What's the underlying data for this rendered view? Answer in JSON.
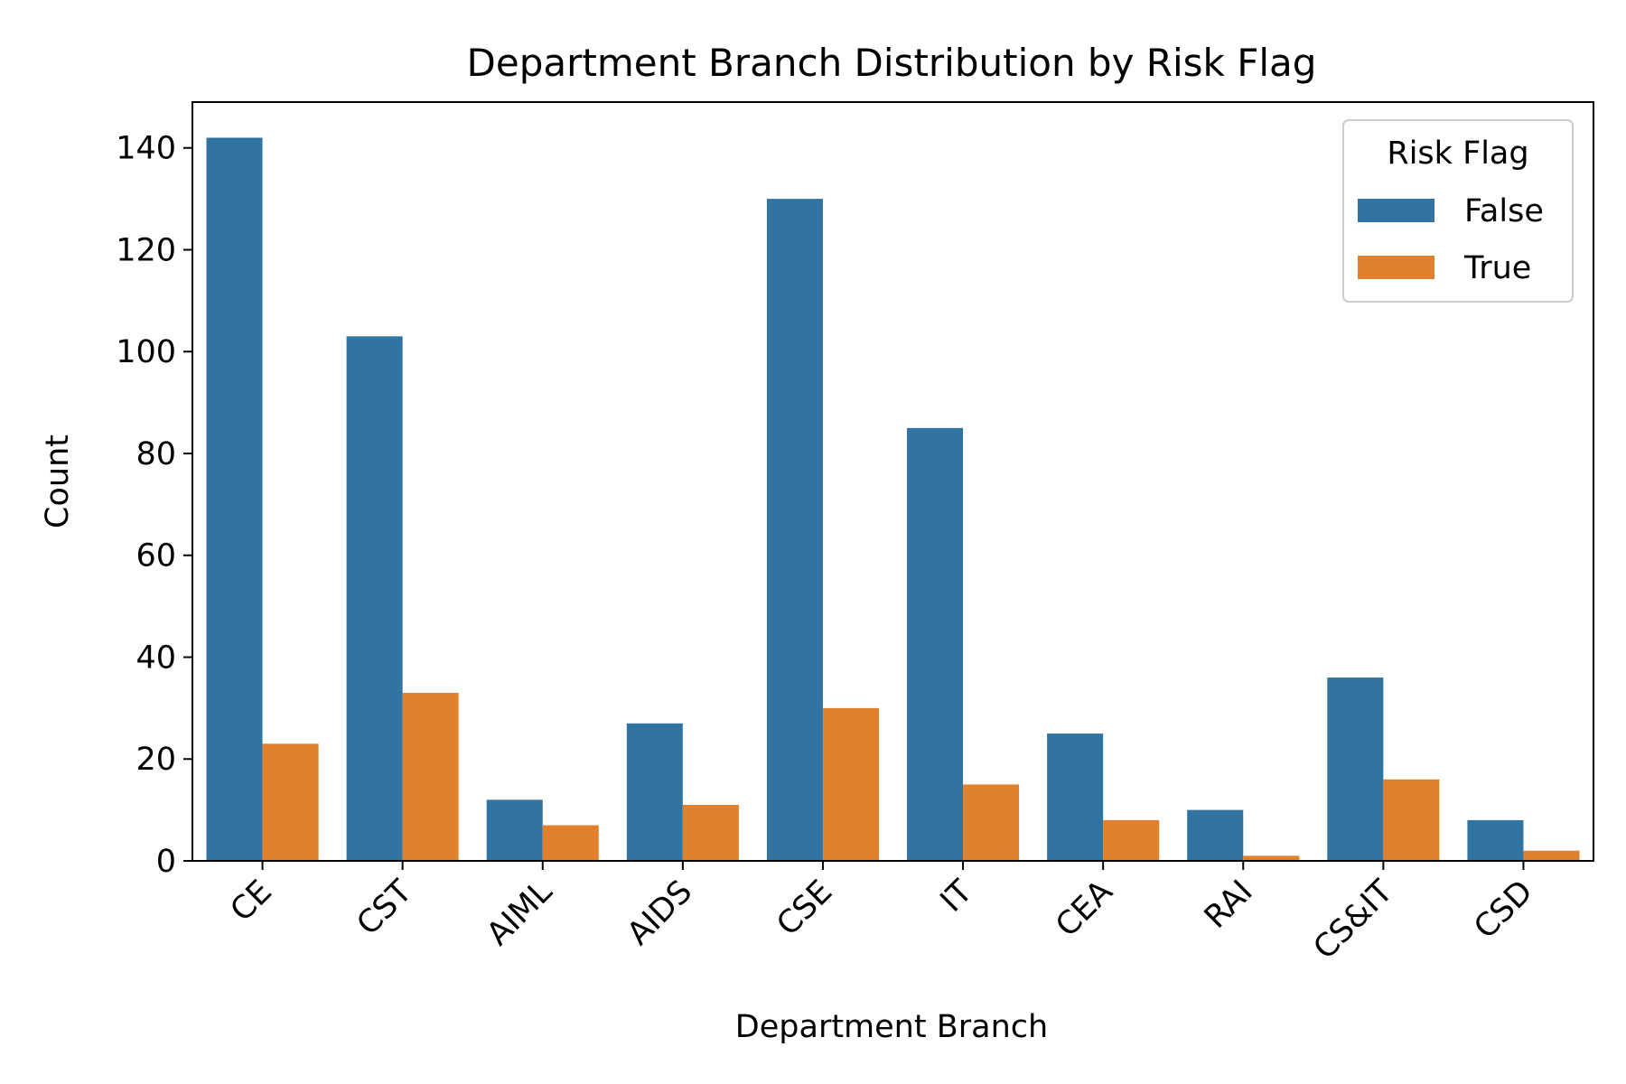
{
  "chart_data": {
    "type": "bar",
    "title": "Department Branch Distribution by Risk Flag",
    "xlabel": "Department Branch",
    "ylabel": "Count",
    "categories": [
      "CE",
      "CST",
      "AIML",
      "AIDS",
      "CSE",
      "IT",
      "CEA",
      "RAI",
      "CS&IT",
      "CSD"
    ],
    "series": [
      {
        "name": "False",
        "color": "#3274a1",
        "values": [
          142,
          103,
          12,
          27,
          130,
          85,
          25,
          10,
          36,
          8
        ]
      },
      {
        "name": "True",
        "color": "#e1812c",
        "values": [
          23,
          33,
          7,
          11,
          30,
          15,
          8,
          1,
          16,
          2
        ]
      }
    ],
    "ylim": [
      0,
      149
    ],
    "yticks": [
      0,
      20,
      40,
      60,
      80,
      100,
      120,
      140
    ],
    "legend": {
      "title": "Risk Flag",
      "position": "top-right"
    },
    "grid": false
  }
}
